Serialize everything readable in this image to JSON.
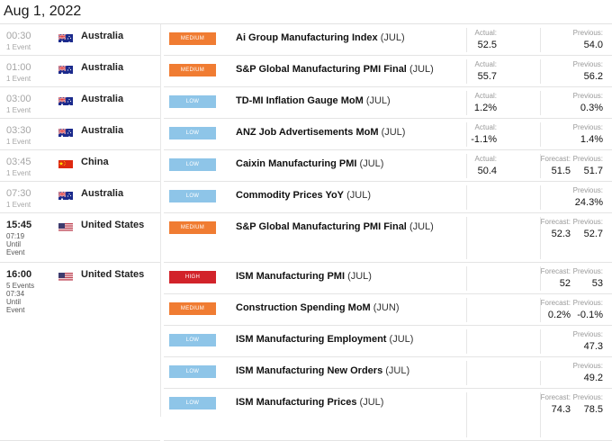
{
  "date": "Aug 1, 2022",
  "labels": {
    "actual": "Actual:",
    "forecast": "Forecast:",
    "previous": "Previous:"
  },
  "left_rows": [
    {
      "time": "00:30",
      "sub1": "1 Event",
      "country": "Australia",
      "flag": "australia"
    },
    {
      "time": "01:00",
      "sub1": "1 Event",
      "country": "Australia",
      "flag": "australia"
    },
    {
      "time": "03:00",
      "sub1": "1 Event",
      "country": "Australia",
      "flag": "australia"
    },
    {
      "time": "03:30",
      "sub1": "1 Event",
      "country": "Australia",
      "flag": "australia"
    },
    {
      "time": "03:45",
      "sub1": "1 Event",
      "country": "China",
      "flag": "china"
    },
    {
      "time": "07:30",
      "sub1": "1 Event",
      "country": "Australia",
      "flag": "australia"
    },
    {
      "time": "15:45",
      "sub1": "07:19",
      "sub2": "Until",
      "sub3": "Event",
      "country": "United States",
      "flag": "united-states"
    },
    {
      "time": "16:00",
      "sub1": "5 Events",
      "sub2": "07:34",
      "sub3": "Until",
      "sub4": "Event",
      "country": "United States",
      "flag": "united-states"
    }
  ],
  "events": [
    {
      "impact": "MEDIUM",
      "name": "Ai Group Manufacturing Index",
      "period": "(JUL)",
      "actual": "52.5",
      "forecast": "",
      "previous": "54.0"
    },
    {
      "impact": "MEDIUM",
      "name": "S&P Global Manufacturing PMI Final",
      "period": "(JUL)",
      "actual": "55.7",
      "forecast": "",
      "previous": "56.2"
    },
    {
      "impact": "LOW",
      "name": "TD-MI Inflation Gauge MoM",
      "period": "(JUL)",
      "actual": "1.2%",
      "forecast": "",
      "previous": "0.3%"
    },
    {
      "impact": "LOW",
      "name": "ANZ Job Advertisements MoM",
      "period": "(JUL)",
      "actual": "-1.1%",
      "forecast": "",
      "previous": "1.4%"
    },
    {
      "impact": "LOW",
      "name": "Caixin Manufacturing PMI",
      "period": "(JUL)",
      "actual": "50.4",
      "forecast": "51.5",
      "previous": "51.7"
    },
    {
      "impact": "LOW",
      "name": "Commodity Prices YoY",
      "period": "(JUL)",
      "actual": "",
      "forecast": "",
      "previous": "24.3%"
    },
    {
      "impact": "MEDIUM",
      "name": "S&P Global Manufacturing PMI Final",
      "period": "(JUL)",
      "actual": "",
      "forecast": "52.3",
      "previous": "52.7"
    },
    {
      "impact": "HIGH",
      "name": "ISM Manufacturing PMI",
      "period": "(JUL)",
      "actual": "",
      "forecast": "52",
      "previous": "53"
    },
    {
      "impact": "MEDIUM",
      "name": "Construction Spending MoM",
      "period": "(JUN)",
      "actual": "",
      "forecast": "0.2%",
      "previous": "-0.1%"
    },
    {
      "impact": "LOW",
      "name": "ISM Manufacturing Employment",
      "period": "(JUL)",
      "actual": "",
      "forecast": "",
      "previous": "47.3"
    },
    {
      "impact": "LOW",
      "name": "ISM Manufacturing New Orders",
      "period": "(JUL)",
      "actual": "",
      "forecast": "",
      "previous": "49.2"
    },
    {
      "impact": "LOW",
      "name": "ISM Manufacturing Prices",
      "period": "(JUL)",
      "actual": "",
      "forecast": "74.3",
      "previous": "78.5"
    }
  ],
  "colors": {
    "medium": "#f07c32",
    "low": "#8ec5e8",
    "high": "#d2232a"
  }
}
